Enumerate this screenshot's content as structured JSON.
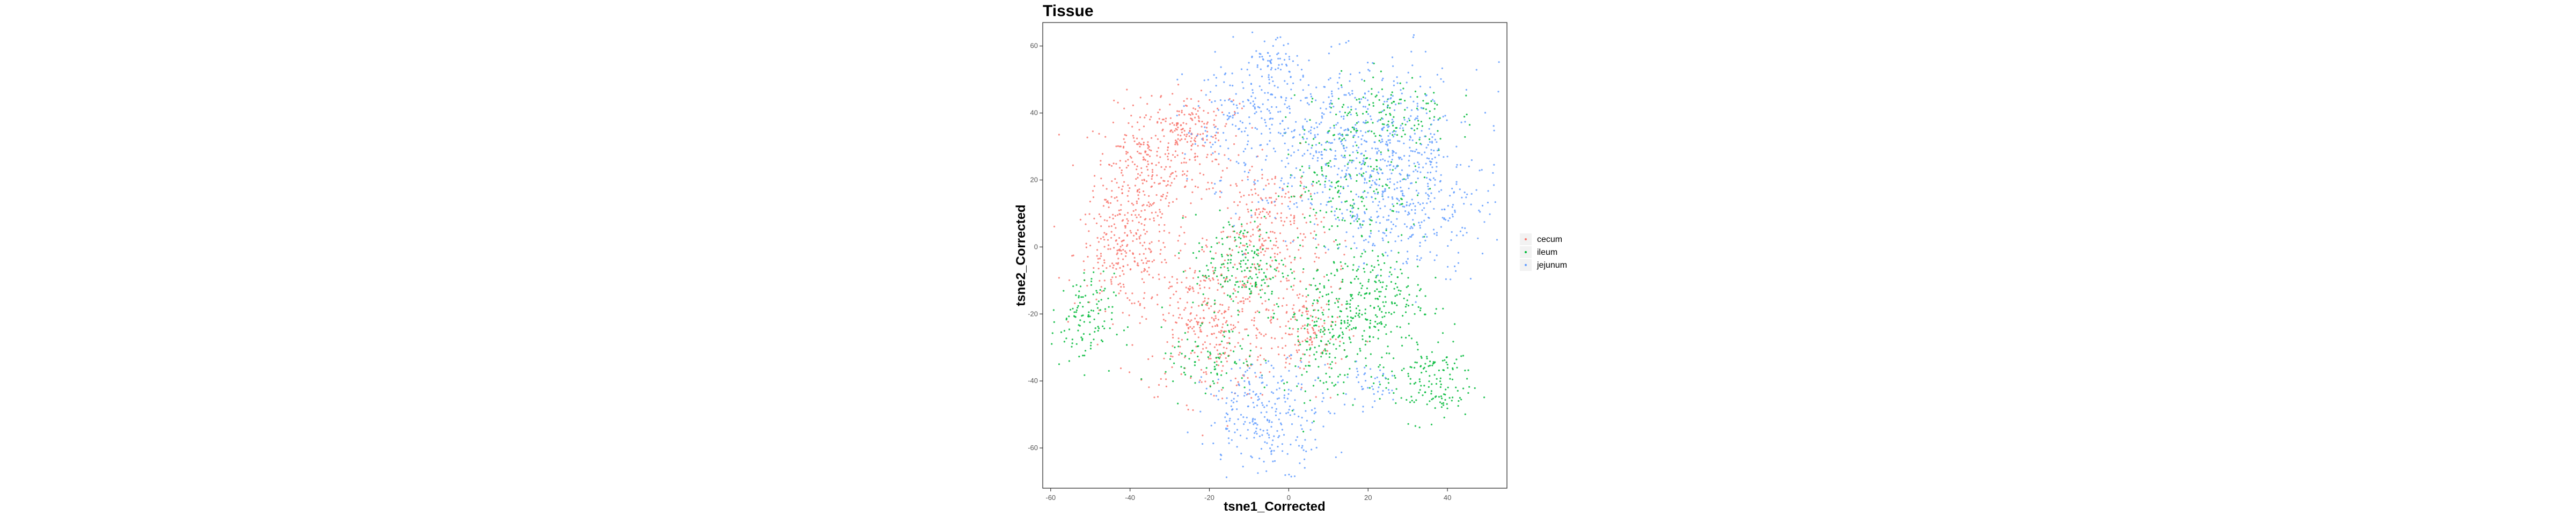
{
  "chart_data": {
    "type": "scatter",
    "title": "Tissue",
    "xlabel": "tsne1_Corrected",
    "ylabel": "tsne2_Corrected",
    "xlim": [
      -62,
      55
    ],
    "ylim": [
      -72,
      67
    ],
    "x_ticks": [
      -60,
      -40,
      -20,
      0,
      20,
      40
    ],
    "y_ticks": [
      -60,
      -40,
      -20,
      0,
      20,
      40,
      60
    ],
    "grid": false,
    "legend_position": "right",
    "series": [
      {
        "name": "cecum",
        "color": "#F8766D",
        "clusters": [
          {
            "cx": -37,
            "cy": 22,
            "sx": 6,
            "sy": 10,
            "n": 260
          },
          {
            "cx": -42,
            "cy": -2,
            "sx": 6,
            "sy": 8,
            "n": 220
          },
          {
            "cx": -25,
            "cy": 30,
            "sx": 5,
            "sy": 7,
            "n": 120
          },
          {
            "cx": -20,
            "cy": -22,
            "sx": 9,
            "sy": 12,
            "n": 380
          },
          {
            "cx": -5,
            "cy": 5,
            "sx": 7,
            "sy": 10,
            "n": 260
          },
          {
            "cx": 5,
            "cy": -25,
            "sx": 5,
            "sy": 8,
            "n": 140
          },
          {
            "cx": -25,
            "cy": 38,
            "sx": 6,
            "sy": 4,
            "n": 80
          }
        ]
      },
      {
        "name": "ileum",
        "color": "#00BA38",
        "clusters": [
          {
            "cx": -52,
            "cy": -22,
            "sx": 4,
            "sy": 7,
            "n": 120
          },
          {
            "cx": -12,
            "cy": -6,
            "sx": 6,
            "sy": 8,
            "n": 200
          },
          {
            "cx": 10,
            "cy": -25,
            "sx": 6,
            "sy": 10,
            "n": 220
          },
          {
            "cx": 22,
            "cy": -15,
            "sx": 6,
            "sy": 8,
            "n": 200
          },
          {
            "cx": 35,
            "cy": -40,
            "sx": 6,
            "sy": 6,
            "n": 150
          },
          {
            "cx": 15,
            "cy": 20,
            "sx": 8,
            "sy": 10,
            "n": 200
          },
          {
            "cx": 25,
            "cy": 40,
            "sx": 8,
            "sy": 6,
            "n": 140
          },
          {
            "cx": -20,
            "cy": -35,
            "sx": 6,
            "sy": 5,
            "n": 80
          }
        ]
      },
      {
        "name": "jejunum",
        "color": "#619CFF",
        "clusters": [
          {
            "cx": 20,
            "cy": 30,
            "sx": 14,
            "sy": 12,
            "n": 600
          },
          {
            "cx": -10,
            "cy": 38,
            "sx": 8,
            "sy": 10,
            "n": 200
          },
          {
            "cx": -5,
            "cy": -50,
            "sx": 8,
            "sy": 8,
            "n": 260
          },
          {
            "cx": 30,
            "cy": 10,
            "sx": 10,
            "sy": 9,
            "n": 250
          },
          {
            "cx": -5,
            "cy": 54,
            "sx": 4,
            "sy": 4,
            "n": 60
          },
          {
            "cx": 20,
            "cy": -42,
            "sx": 3,
            "sy": 3,
            "n": 40
          }
        ]
      }
    ]
  }
}
